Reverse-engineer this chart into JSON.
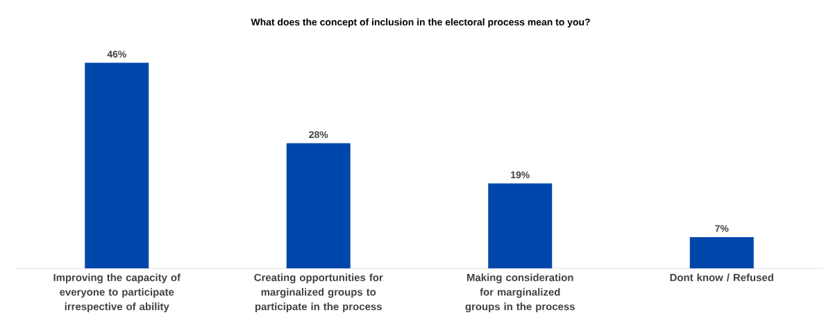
{
  "chart_data": {
    "type": "bar",
    "title": "What does the concept of inclusion in the electoral process mean to you?",
    "categories": [
      "Improving the capacity of everyone to participate irrespective of ability",
      "Creating opportunities for marginalized groups to participate in the process",
      "Making consideration for marginalized groups in the process",
      "Dont know / Refused"
    ],
    "values": [
      46,
      28,
      19,
      7
    ],
    "value_labels": [
      "46%",
      "28%",
      "19%",
      "7%"
    ],
    "color": "#0047ab"
  }
}
